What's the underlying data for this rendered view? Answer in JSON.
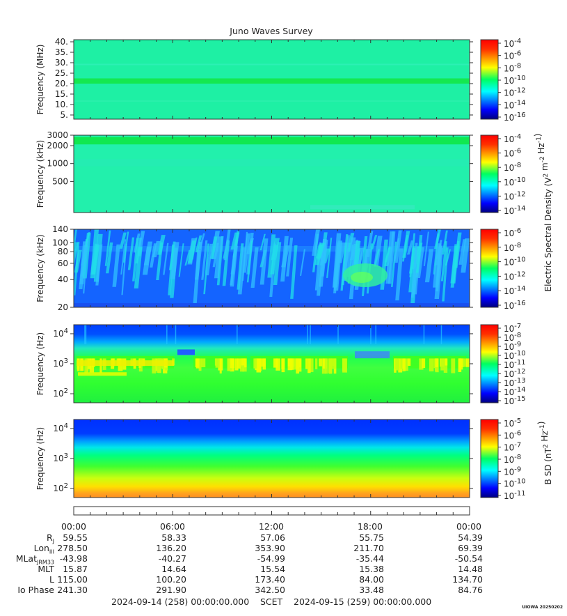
{
  "title": "Juno Waves Survey",
  "panels": [
    {
      "ylabel": "Frequency (MHz)",
      "ytick_labels": [
        "40.",
        "35.",
        "30.",
        "25.",
        "20.",
        "15.",
        "10.",
        "5."
      ],
      "ytick_values": [
        40,
        35,
        30,
        25,
        20,
        15,
        10,
        5
      ],
      "yscale": "linear",
      "ylim": [
        3,
        41
      ],
      "colorbar_ticks": [
        "10^-4",
        "10^-6",
        "10^-8",
        "10^-10",
        "10^-12",
        "10^-14",
        "10^-16"
      ],
      "style": "mhz"
    },
    {
      "ylabel": "Frequency (kHz)",
      "ytick_labels": [
        "3000",
        "2000",
        "1000",
        "500"
      ],
      "ytick_values": [
        3000,
        2000,
        1000,
        500
      ],
      "yscale": "log",
      "ylim": [
        150,
        3000
      ],
      "colorbar_ticks": [
        "10^-4",
        "10^-6",
        "10^-8",
        "10^-10",
        "10^-12",
        "10^-14"
      ],
      "style": "hfr"
    },
    {
      "ylabel": "Frequency (kHz)",
      "ytick_labels": [
        "140",
        "100",
        "80",
        "60",
        "40",
        "20"
      ],
      "ytick_values": [
        140,
        100,
        80,
        60,
        40,
        20
      ],
      "yscale": "log",
      "ylim": [
        20,
        140
      ],
      "colorbar_ticks": [
        "10^-6",
        "10^-8",
        "10^-10",
        "10^-12",
        "10^-14",
        "10^-16"
      ],
      "style": "lfr"
    },
    {
      "ylabel": "Frequency (Hz)",
      "ytick_labels": [
        "10^4",
        "10^3",
        "10^2"
      ],
      "ytick_values": [
        10000,
        1000,
        100
      ],
      "yscale": "log",
      "ylim": [
        50,
        20000
      ],
      "colorbar_ticks": [
        "10^-7",
        "10^-8",
        "10^-9",
        "10^-10",
        "10^-11",
        "10^-12",
        "10^-13",
        "10^-14",
        "10^-15"
      ],
      "style": "elf"
    },
    {
      "ylabel": "Frequency (Hz)",
      "ytick_labels": [
        "10^4",
        "10^3",
        "10^2"
      ],
      "ytick_values": [
        10000,
        1000,
        100
      ],
      "yscale": "log",
      "ylim": [
        50,
        20000
      ],
      "colorbar_ticks": [
        "10^-5",
        "10^-6",
        "10^-7",
        "10^-8",
        "10^-9",
        "10^-10",
        "10^-11"
      ],
      "style": "bsd"
    }
  ],
  "colorbar_label_electric": "Electric Spectral Density (V^2 m^-2 Hz^-1)",
  "colorbar_label_magnetic": "B SD (nT^2 Hz^-1)",
  "time_ticks": [
    "00:00",
    "06:00",
    "12:00",
    "18:00",
    "00:00"
  ],
  "ephemeris": [
    {
      "label": "R",
      "sub": "J",
      "values": [
        "59.55",
        "58.33",
        "57.06",
        "55.75",
        "54.39"
      ]
    },
    {
      "label": "Lon",
      "sub": "III",
      "values": [
        "278.50",
        "136.20",
        "353.90",
        "211.70",
        "69.39"
      ]
    },
    {
      "label": "MLat",
      "sub": "JRM33",
      "values": [
        "-43.98",
        "-40.27",
        "-54.99",
        "-35.44",
        "-50.54"
      ]
    },
    {
      "label": "MLT",
      "sub": "",
      "values": [
        "15.87",
        "14.64",
        "15.54",
        "15.38",
        "14.48"
      ]
    },
    {
      "label": "L",
      "sub": "",
      "values": [
        "115.00",
        "100.20",
        "173.40",
        "84.00",
        "134.70"
      ]
    },
    {
      "label": "Io Phase",
      "sub": "",
      "values": [
        "241.30",
        "291.90",
        "342.50",
        "33.48",
        "84.76"
      ]
    }
  ],
  "footer": {
    "start": "2024-09-14 (258) 00:00:00.000",
    "scet": "SCET",
    "end": "2024-09-15 (259) 00:00:00.000"
  },
  "stamp": "UIOWA 20250202",
  "chart_data": {
    "type": "heatmap",
    "title": "Juno Waves Survey",
    "x_range": [
      "2024-09-14 00:00",
      "2024-09-15 00:00"
    ],
    "x_ticks": [
      "00:00",
      "06:00",
      "12:00",
      "18:00",
      "00:00"
    ],
    "panels": [
      {
        "ylabel": "Frequency (MHz)",
        "ylim": [
          3,
          41
        ],
        "yscale": "linear",
        "colorbar_range": [
          "10^-16",
          "10^-4"
        ],
        "features": "uniform background ~10^-13 with band near 20-22 MHz"
      },
      {
        "ylabel": "Frequency (kHz)",
        "ylim": [
          150,
          3000
        ],
        "yscale": "log",
        "colorbar_range": [
          "10^-14",
          "10^-4"
        ],
        "features": "uniform background with band near 2000-2700 kHz"
      },
      {
        "ylabel": "Frequency (kHz)",
        "ylim": [
          20,
          140
        ],
        "yscale": "log",
        "colorbar_range": [
          "10^-16",
          "10^-6"
        ],
        "features": "blue background with drifting cyan bursts, green patch near 40 kHz around 17:00"
      },
      {
        "ylabel": "Frequency (Hz)",
        "ylim": [
          50,
          20000
        ],
        "yscale": "log",
        "colorbar_range": [
          "10^-15",
          "10^-7"
        ],
        "features": "green/cyan with yellow emission near 1 kHz"
      },
      {
        "ylabel": "Frequency (Hz)",
        "ylim": [
          50,
          20000
        ],
        "yscale": "log",
        "colorbar_range": [
          "10^-11",
          "10^-5"
        ],
        "features": "blue at high freq, green mid, yellow-orange at low freq"
      }
    ]
  }
}
